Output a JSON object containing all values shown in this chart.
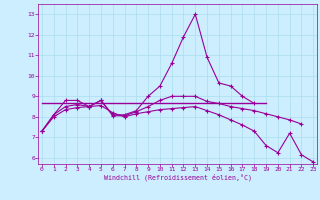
{
  "x": [
    0,
    1,
    2,
    3,
    4,
    5,
    6,
    7,
    8,
    9,
    10,
    11,
    12,
    13,
    14,
    15,
    16,
    17,
    18,
    19,
    20,
    21,
    22,
    23
  ],
  "line1": [
    7.3,
    8.1,
    8.8,
    8.8,
    8.5,
    8.8,
    8.1,
    8.1,
    8.3,
    9.0,
    9.5,
    10.6,
    11.9,
    13.0,
    10.9,
    9.65,
    9.5,
    9.0,
    8.65,
    null,
    null,
    null,
    null,
    null
  ],
  "line2": [
    7.3,
    8.1,
    8.5,
    8.6,
    8.5,
    8.8,
    8.05,
    8.05,
    8.25,
    8.5,
    8.8,
    9.0,
    9.0,
    9.0,
    8.75,
    8.65,
    8.5,
    8.4,
    8.3,
    8.15,
    8.0,
    7.85,
    7.65,
    null
  ],
  "line3": [
    7.3,
    8.0,
    8.35,
    8.45,
    8.5,
    8.55,
    8.2,
    8.0,
    8.15,
    8.25,
    8.35,
    8.4,
    8.45,
    8.5,
    8.3,
    8.1,
    7.85,
    7.6,
    7.3,
    6.6,
    6.25,
    7.2,
    6.15,
    5.8
  ],
  "line4_x": [
    0,
    19
  ],
  "line4_y": [
    8.65,
    8.65
  ],
  "ylim": [
    5.7,
    13.5
  ],
  "xlim": [
    -0.3,
    23.3
  ],
  "yticks": [
    6,
    7,
    8,
    9,
    10,
    11,
    12,
    13
  ],
  "xticks": [
    0,
    1,
    2,
    3,
    4,
    5,
    6,
    7,
    8,
    9,
    10,
    11,
    12,
    13,
    14,
    15,
    16,
    17,
    18,
    19,
    20,
    21,
    22,
    23
  ],
  "xlabel": "Windchill (Refroidissement éolien,°C)",
  "color": "#990099",
  "bg_color": "#cceeff",
  "grid_color": "#aaddee",
  "fig_bg": "#cceeff"
}
